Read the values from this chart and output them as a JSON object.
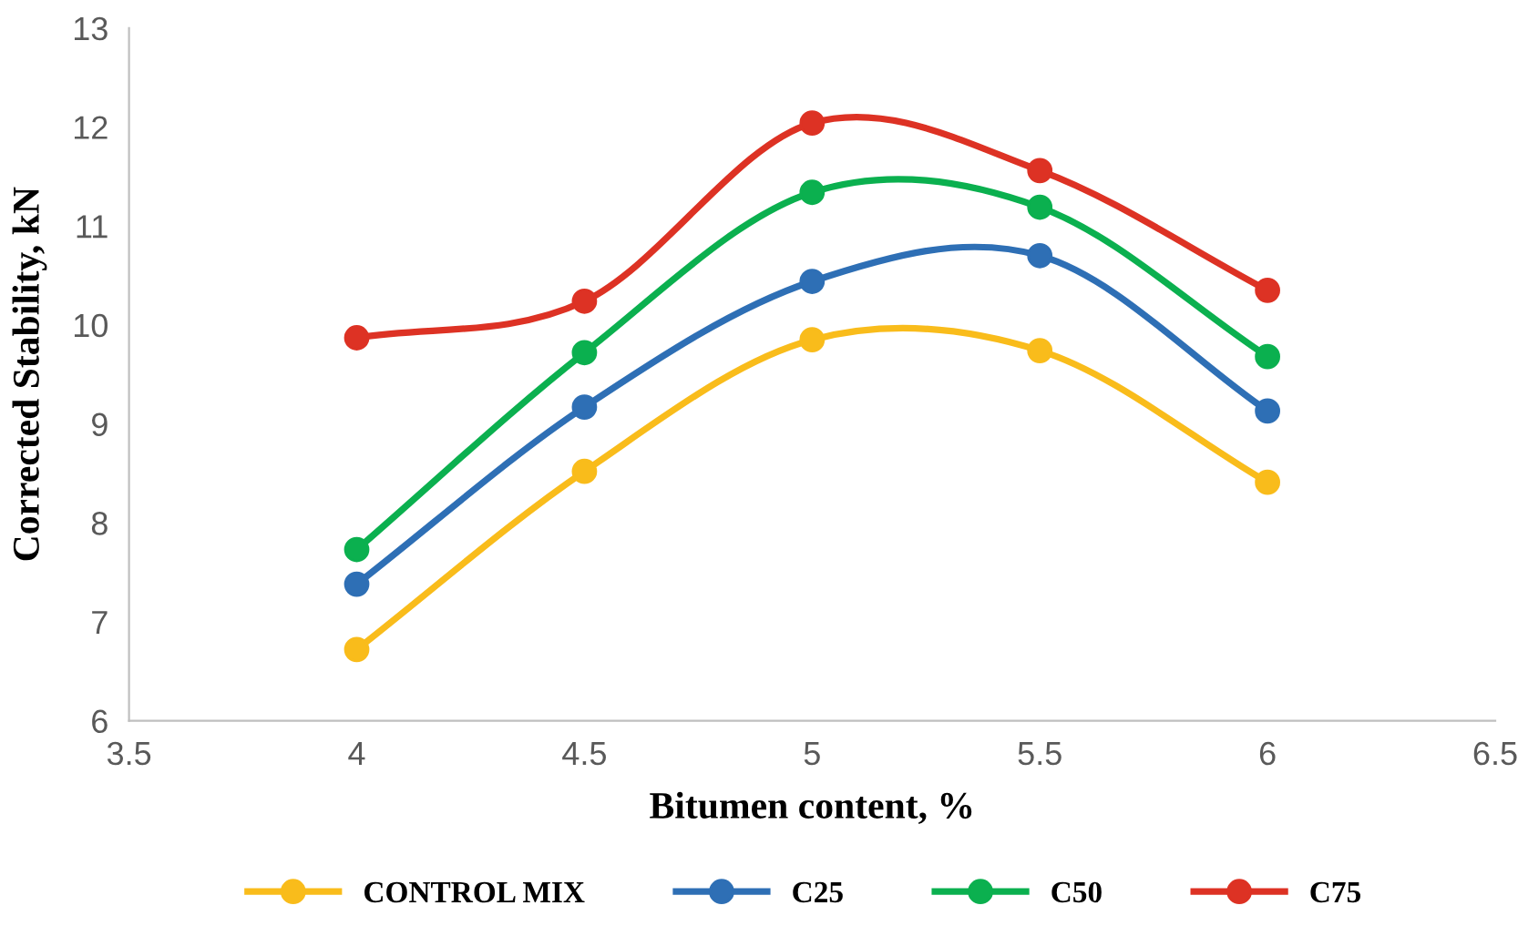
{
  "chart_data": {
    "type": "line",
    "xlabel": "Bitumen content, %",
    "ylabel": "Corrected Stability, kN",
    "x": [
      4,
      4.5,
      5,
      5.5,
      6
    ],
    "series": [
      {
        "name": "CONTROL MIX",
        "color": "#f9bc1b",
        "values": [
          6.72,
          8.52,
          9.85,
          9.74,
          8.41
        ]
      },
      {
        "name": "C25",
        "color": "#2e6fb5",
        "values": [
          7.38,
          9.17,
          10.44,
          10.7,
          9.13
        ]
      },
      {
        "name": "C50",
        "color": "#0bb04f",
        "values": [
          7.73,
          9.72,
          11.34,
          11.19,
          9.68
        ]
      },
      {
        "name": "C75",
        "color": "#dd3224",
        "values": [
          9.87,
          10.24,
          12.04,
          11.56,
          10.35
        ]
      }
    ],
    "xlim": [
      3.5,
      6.5
    ],
    "xticks": [
      3.5,
      4,
      4.5,
      5,
      5.5,
      6,
      6.5
    ],
    "ylim": [
      6,
      13
    ],
    "yticks": [
      6,
      7,
      8,
      9,
      10,
      11,
      12,
      13
    ],
    "grid": false,
    "legend": "bottom",
    "marker": "circle",
    "line_style": "solid"
  }
}
